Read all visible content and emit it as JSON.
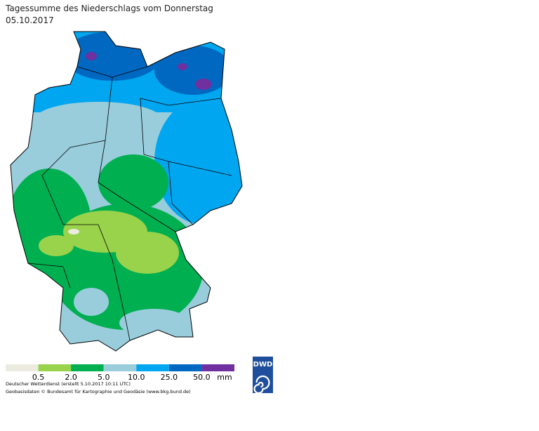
{
  "header": {
    "title": "Tagessumme des Niederschlags vom Donnerstag",
    "date": "05.10.2017"
  },
  "legend": {
    "colors": [
      "#ecebe0",
      "#99d24b",
      "#00af50",
      "#99cddc",
      "#00a6ef",
      "#0068c0",
      "#7030a0"
    ],
    "labels": [
      "0.5",
      "2.0",
      "5.0",
      "10.0",
      "25.0",
      "50.0"
    ],
    "unit": "mm"
  },
  "footer": {
    "line1": "Deutscher Wetterdienst (erstellt 5.10.2017 10:11 UTC)",
    "line2": "Geobasisdaten © Bundesamt für Kartographie und Geodäsie (www.bkg.bund.de)"
  },
  "logo": {
    "text": "DWD"
  }
}
